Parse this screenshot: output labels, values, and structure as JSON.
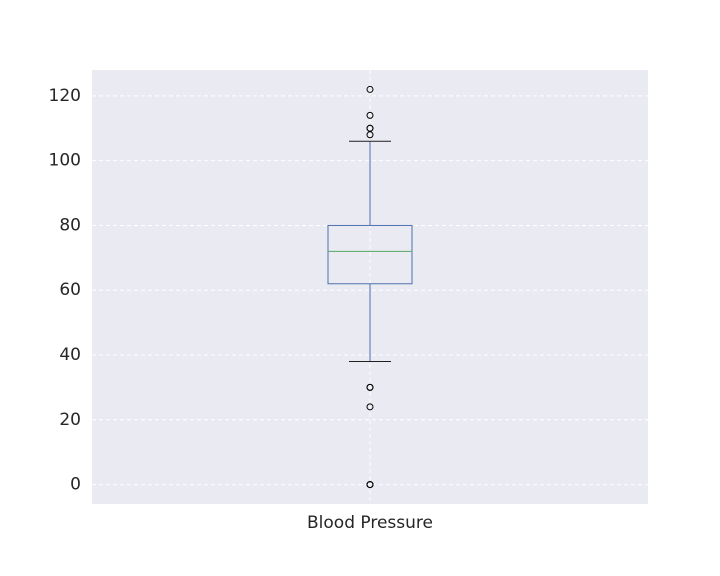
{
  "chart_data": {
    "type": "boxplot",
    "title": "",
    "xlabel": "",
    "ylabel": "",
    "categories": [
      "Blood Pressure"
    ],
    "series": [
      {
        "category": "Blood Pressure",
        "whisker_low": 38,
        "q1": 62,
        "median": 72,
        "q3": 80,
        "whisker_high": 106,
        "outliers": [
          0,
          0,
          0,
          24,
          30,
          30,
          108,
          110,
          110,
          114,
          122
        ]
      }
    ],
    "ylim": [
      -6,
      128
    ],
    "yticks": [
      0,
      20,
      40,
      60,
      80,
      100,
      120
    ],
    "grid": true,
    "colors": {
      "background": "#eaeaf2",
      "grid": "#ffffff",
      "box": "#4c72b0",
      "median": "#55a868",
      "caps": "#1f1f1f",
      "outlier": "#000000"
    }
  }
}
